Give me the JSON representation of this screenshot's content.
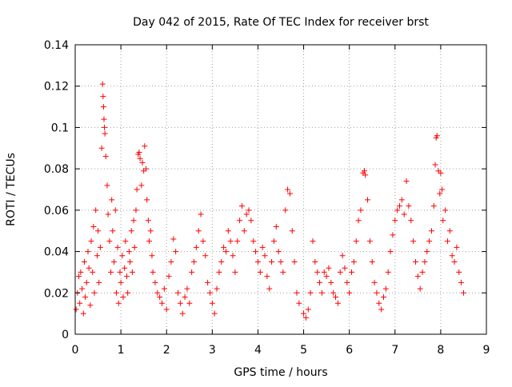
{
  "chart_data": {
    "type": "scatter",
    "title": "Day 042 of 2015, Rate Of TEC Index for receiver brst",
    "xlabel": "GPS time / hours",
    "ylabel": "ROTI / TECUs",
    "xlim": [
      0,
      9
    ],
    "ylim": [
      0,
      0.14
    ],
    "x_ticks": [
      0,
      1,
      2,
      3,
      4,
      5,
      6,
      7,
      8,
      9
    ],
    "x_tick_labels": [
      "0",
      "1",
      "2",
      "3",
      "4",
      "5",
      "6",
      "7",
      "8",
      "9"
    ],
    "y_ticks": [
      0,
      0.02,
      0.04,
      0.06,
      0.08,
      0.1,
      0.12,
      0.14
    ],
    "y_tick_labels": [
      "0",
      "0.02",
      "0.04",
      "0.06",
      "0.08",
      "0.1",
      "0.12",
      "0.14"
    ],
    "grid": true,
    "marker": "+",
    "series_color": "#ff0000",
    "series": [
      {
        "name": "ROTI",
        "points": [
          [
            0.02,
            0.012
          ],
          [
            0.05,
            0.02
          ],
          [
            0.08,
            0.028
          ],
          [
            0.1,
            0.015
          ],
          [
            0.12,
            0.03
          ],
          [
            0.15,
            0.022
          ],
          [
            0.18,
            0.01
          ],
          [
            0.2,
            0.035
          ],
          [
            0.22,
            0.018
          ],
          [
            0.25,
            0.025
          ],
          [
            0.28,
            0.04
          ],
          [
            0.3,
            0.032
          ],
          [
            0.33,
            0.014
          ],
          [
            0.35,
            0.045
          ],
          [
            0.38,
            0.03
          ],
          [
            0.4,
            0.052
          ],
          [
            0.42,
            0.02
          ],
          [
            0.45,
            0.06
          ],
          [
            0.48,
            0.038
          ],
          [
            0.5,
            0.05
          ],
          [
            0.52,
            0.025
          ],
          [
            0.55,
            0.042
          ],
          [
            0.58,
            0.09
          ],
          [
            0.6,
            0.121
          ],
          [
            0.61,
            0.115
          ],
          [
            0.62,
            0.11
          ],
          [
            0.63,
            0.104
          ],
          [
            0.64,
            0.1
          ],
          [
            0.65,
            0.097
          ],
          [
            0.67,
            0.086
          ],
          [
            0.7,
            0.072
          ],
          [
            0.72,
            0.058
          ],
          [
            0.75,
            0.045
          ],
          [
            0.78,
            0.03
          ],
          [
            0.8,
            0.065
          ],
          [
            0.82,
            0.05
          ],
          [
            0.85,
            0.035
          ],
          [
            0.88,
            0.06
          ],
          [
            0.9,
            0.02
          ],
          [
            0.93,
            0.042
          ],
          [
            0.95,
            0.015
          ],
          [
            0.98,
            0.03
          ],
          [
            1.0,
            0.025
          ],
          [
            1.03,
            0.038
          ],
          [
            1.05,
            0.018
          ],
          [
            1.08,
            0.032
          ],
          [
            1.1,
            0.045
          ],
          [
            1.13,
            0.028
          ],
          [
            1.15,
            0.02
          ],
          [
            1.18,
            0.04
          ],
          [
            1.2,
            0.035
          ],
          [
            1.23,
            0.05
          ],
          [
            1.25,
            0.03
          ],
          [
            1.28,
            0.055
          ],
          [
            1.3,
            0.042
          ],
          [
            1.33,
            0.06
          ],
          [
            1.35,
            0.07
          ],
          [
            1.38,
            0.087
          ],
          [
            1.4,
            0.088
          ],
          [
            1.42,
            0.085
          ],
          [
            1.45,
            0.072
          ],
          [
            1.47,
            0.083
          ],
          [
            1.5,
            0.079
          ],
          [
            1.52,
            0.091
          ],
          [
            1.55,
            0.08
          ],
          [
            1.57,
            0.065
          ],
          [
            1.6,
            0.055
          ],
          [
            1.62,
            0.045
          ],
          [
            1.65,
            0.05
          ],
          [
            1.68,
            0.038
          ],
          [
            1.7,
            0.03
          ],
          [
            1.75,
            0.025
          ],
          [
            1.8,
            0.02
          ],
          [
            1.85,
            0.018
          ],
          [
            1.9,
            0.015
          ],
          [
            1.95,
            0.022
          ],
          [
            2.0,
            0.012
          ],
          [
            2.05,
            0.028
          ],
          [
            2.1,
            0.035
          ],
          [
            2.15,
            0.046
          ],
          [
            2.2,
            0.04
          ],
          [
            2.25,
            0.02
          ],
          [
            2.3,
            0.015
          ],
          [
            2.35,
            0.01
          ],
          [
            2.4,
            0.018
          ],
          [
            2.45,
            0.022
          ],
          [
            2.5,
            0.015
          ],
          [
            2.55,
            0.03
          ],
          [
            2.6,
            0.035
          ],
          [
            2.65,
            0.042
          ],
          [
            2.7,
            0.05
          ],
          [
            2.75,
            0.058
          ],
          [
            2.8,
            0.045
          ],
          [
            2.85,
            0.038
          ],
          [
            2.9,
            0.025
          ],
          [
            2.95,
            0.02
          ],
          [
            3.0,
            0.015
          ],
          [
            3.05,
            0.01
          ],
          [
            3.1,
            0.022
          ],
          [
            3.15,
            0.03
          ],
          [
            3.2,
            0.035
          ],
          [
            3.25,
            0.042
          ],
          [
            3.3,
            0.04
          ],
          [
            3.35,
            0.05
          ],
          [
            3.4,
            0.045
          ],
          [
            3.45,
            0.038
          ],
          [
            3.5,
            0.03
          ],
          [
            3.55,
            0.045
          ],
          [
            3.6,
            0.055
          ],
          [
            3.65,
            0.062
          ],
          [
            3.7,
            0.05
          ],
          [
            3.75,
            0.058
          ],
          [
            3.8,
            0.06
          ],
          [
            3.85,
            0.055
          ],
          [
            3.9,
            0.045
          ],
          [
            3.95,
            0.04
          ],
          [
            4.0,
            0.035
          ],
          [
            4.05,
            0.03
          ],
          [
            4.1,
            0.042
          ],
          [
            4.15,
            0.038
          ],
          [
            4.2,
            0.028
          ],
          [
            4.25,
            0.022
          ],
          [
            4.3,
            0.035
          ],
          [
            4.35,
            0.045
          ],
          [
            4.4,
            0.052
          ],
          [
            4.45,
            0.04
          ],
          [
            4.5,
            0.035
          ],
          [
            4.55,
            0.03
          ],
          [
            4.6,
            0.06
          ],
          [
            4.65,
            0.07
          ],
          [
            4.7,
            0.068
          ],
          [
            4.75,
            0.05
          ],
          [
            4.8,
            0.035
          ],
          [
            4.85,
            0.02
          ],
          [
            4.9,
            0.015
          ],
          [
            5.0,
            0.01
          ],
          [
            5.05,
            0.008
          ],
          [
            5.1,
            0.012
          ],
          [
            5.15,
            0.02
          ],
          [
            5.2,
            0.045
          ],
          [
            5.25,
            0.035
          ],
          [
            5.3,
            0.03
          ],
          [
            5.35,
            0.025
          ],
          [
            5.4,
            0.02
          ],
          [
            5.45,
            0.03
          ],
          [
            5.5,
            0.028
          ],
          [
            5.55,
            0.032
          ],
          [
            5.6,
            0.025
          ],
          [
            5.65,
            0.02
          ],
          [
            5.7,
            0.018
          ],
          [
            5.75,
            0.015
          ],
          [
            5.8,
            0.03
          ],
          [
            5.85,
            0.038
          ],
          [
            5.9,
            0.032
          ],
          [
            5.95,
            0.025
          ],
          [
            6.0,
            0.02
          ],
          [
            6.05,
            0.03
          ],
          [
            6.1,
            0.035
          ],
          [
            6.15,
            0.045
          ],
          [
            6.2,
            0.055
          ],
          [
            6.25,
            0.06
          ],
          [
            6.3,
            0.078
          ],
          [
            6.33,
            0.079
          ],
          [
            6.35,
            0.077
          ],
          [
            6.4,
            0.065
          ],
          [
            6.45,
            0.045
          ],
          [
            6.5,
            0.035
          ],
          [
            6.55,
            0.025
          ],
          [
            6.6,
            0.02
          ],
          [
            6.65,
            0.015
          ],
          [
            6.7,
            0.012
          ],
          [
            6.75,
            0.018
          ],
          [
            6.8,
            0.022
          ],
          [
            6.85,
            0.03
          ],
          [
            6.9,
            0.04
          ],
          [
            6.95,
            0.048
          ],
          [
            7.0,
            0.055
          ],
          [
            7.05,
            0.06
          ],
          [
            7.1,
            0.062
          ],
          [
            7.15,
            0.065
          ],
          [
            7.2,
            0.058
          ],
          [
            7.25,
            0.074
          ],
          [
            7.3,
            0.062
          ],
          [
            7.35,
            0.055
          ],
          [
            7.4,
            0.045
          ],
          [
            7.45,
            0.035
          ],
          [
            7.5,
            0.028
          ],
          [
            7.55,
            0.022
          ],
          [
            7.6,
            0.03
          ],
          [
            7.65,
            0.035
          ],
          [
            7.7,
            0.04
          ],
          [
            7.75,
            0.045
          ],
          [
            7.8,
            0.05
          ],
          [
            7.85,
            0.062
          ],
          [
            7.88,
            0.082
          ],
          [
            7.9,
            0.095
          ],
          [
            7.92,
            0.096
          ],
          [
            7.95,
            0.079
          ],
          [
            7.98,
            0.068
          ],
          [
            8.0,
            0.078
          ],
          [
            8.03,
            0.07
          ],
          [
            8.05,
            0.055
          ],
          [
            8.1,
            0.06
          ],
          [
            8.15,
            0.045
          ],
          [
            8.2,
            0.05
          ],
          [
            8.25,
            0.038
          ],
          [
            8.3,
            0.035
          ],
          [
            8.35,
            0.042
          ],
          [
            8.4,
            0.03
          ],
          [
            8.45,
            0.025
          ],
          [
            8.5,
            0.02
          ]
        ]
      }
    ]
  }
}
